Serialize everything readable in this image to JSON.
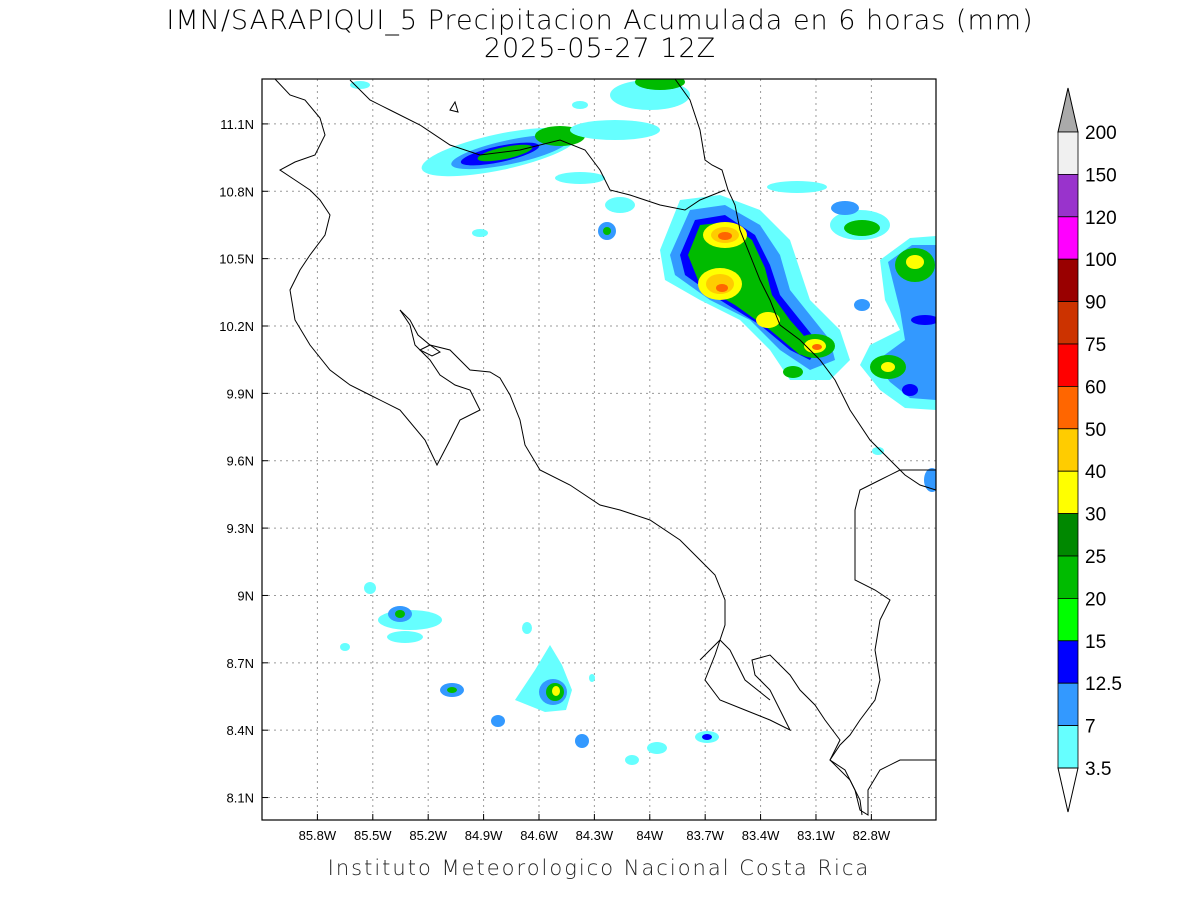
{
  "title": {
    "line1": "IMN/SARAPIQUI_5 Precipitacion Acumulada en 6 horas (mm)",
    "line2": "2025-05-27 12Z"
  },
  "footer": "Instituto Meteorologico Nacional Costa Rica",
  "map": {
    "lon_range": [
      -86.1,
      -82.45
    ],
    "lat_range": [
      8.0,
      11.3
    ],
    "lon_ticks": [
      "85.8W",
      "85.5W",
      "85.2W",
      "84.9W",
      "84.6W",
      "84.3W",
      "84W",
      "83.7W",
      "83.4W",
      "83.1W",
      "82.8W"
    ],
    "lat_ticks": [
      "11.1N",
      "10.8N",
      "10.5N",
      "10.2N",
      "9.9N",
      "9.6N",
      "9.3N",
      "9N",
      "8.7N",
      "8.4N",
      "8.1N"
    ],
    "gridlines": "dotted"
  },
  "colorbar": {
    "labels": [
      "200",
      "150",
      "120",
      "100",
      "90",
      "75",
      "60",
      "50",
      "40",
      "30",
      "25",
      "20",
      "15",
      "12.5",
      "7",
      "3.5"
    ],
    "colors": [
      "#f0f0f0",
      "#9933cc",
      "#ff00ff",
      "#990000",
      "#cc3300",
      "#ff0000",
      "#ff6600",
      "#ffcc00",
      "#ffff00",
      "#008800",
      "#00bb00",
      "#00ff00",
      "#0000ff",
      "#3399ff",
      "#66ffff"
    ],
    "top_triangle_color": "#aaaaaa",
    "bottom_triangle_color": "#ffffff"
  }
}
